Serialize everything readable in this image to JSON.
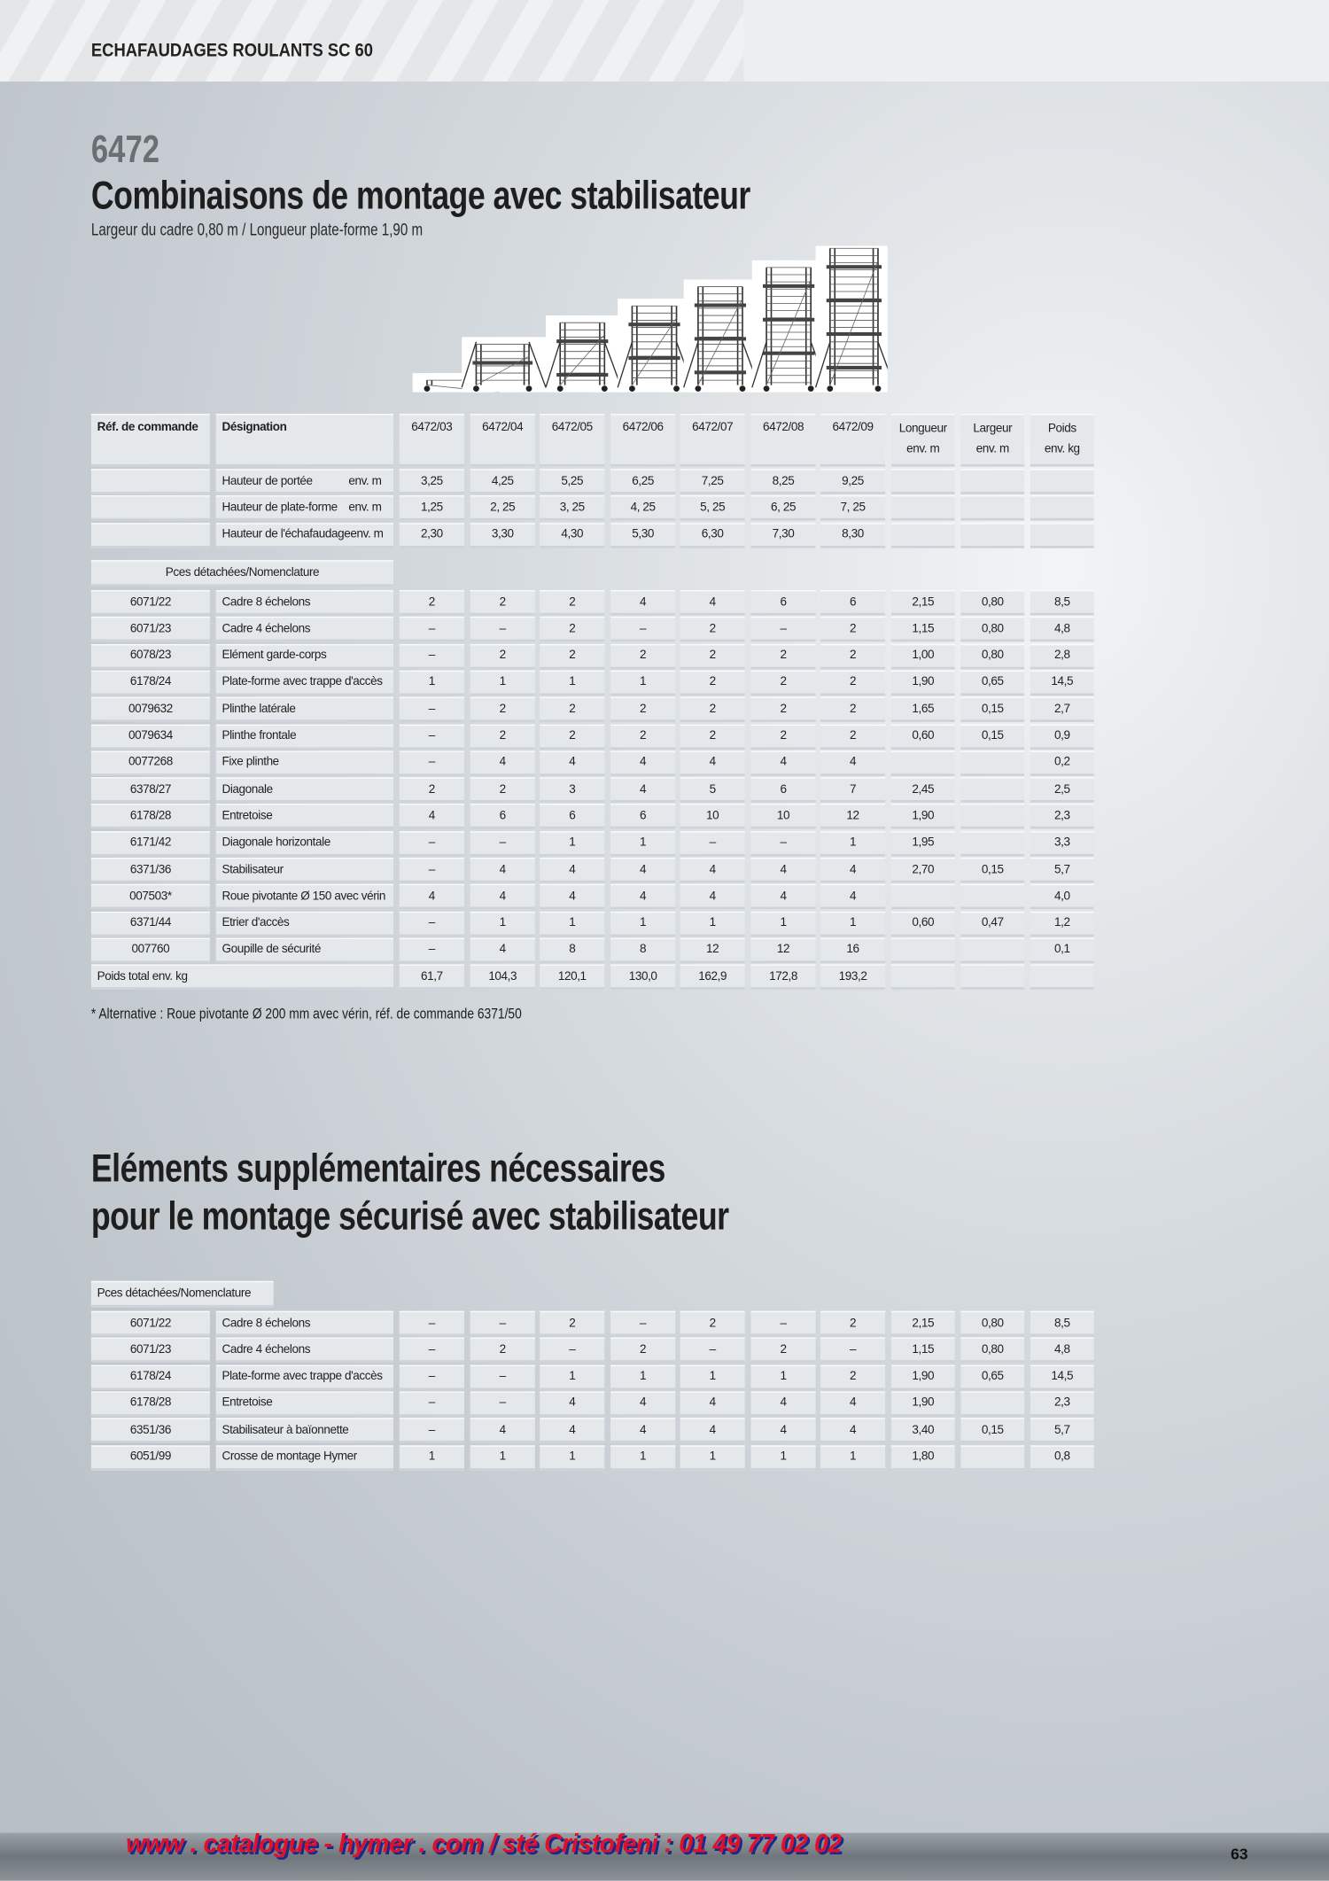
{
  "header": {
    "title": "ECHAFAUDAGES ROULANTS SC 60"
  },
  "section1": {
    "number": "6472",
    "title": "Combinaisons de montage avec stabilisateur",
    "subtitle": "Largeur du cadre 0,80 m / Longueur plate-forme 1,90 m",
    "table": {
      "columns": {
        "ref": "Réf. de commande",
        "designation": "Désignation",
        "models": [
          "6472/03",
          "6472/04",
          "6472/05",
          "6472/06",
          "6472/07",
          "6472/08",
          "6472/09"
        ],
        "extra": [
          [
            "Longueur",
            "env. m"
          ],
          [
            "Largeur",
            "env. m"
          ],
          [
            "Poids",
            "env. kg"
          ]
        ]
      },
      "heights": [
        {
          "label": "Hauteur de portée",
          "unit": "env. m",
          "values": [
            "3,25",
            "4,25",
            "5,25",
            "6,25",
            "7,25",
            "8,25",
            "9,25"
          ]
        },
        {
          "label": "Hauteur de plate-forme",
          "unit": "env. m",
          "values": [
            "1,25",
            "2, 25",
            "3, 25",
            "4, 25",
            "5, 25",
            "6, 25",
            "7, 25"
          ]
        },
        {
          "label": "Hauteur de l'échafaudage",
          "unit": "env. m",
          "values": [
            "2,30",
            "3,30",
            "4,30",
            "5,30",
            "6,30",
            "7,30",
            "8,30"
          ]
        }
      ],
      "parts_label": "Pces détachées/Nomenclature",
      "rows": [
        [
          "6071/22",
          "Cadre 8 échelons",
          "2",
          "2",
          "2",
          "4",
          "4",
          "6",
          "6",
          "2,15",
          "0,80",
          "8,5"
        ],
        [
          "6071/23",
          "Cadre 4 échelons",
          "–",
          "–",
          "2",
          "–",
          "2",
          "–",
          "2",
          "1,15",
          "0,80",
          "4,8"
        ],
        [
          "6078/23",
          "Elément garde-corps",
          "–",
          "2",
          "2",
          "2",
          "2",
          "2",
          "2",
          "1,00",
          "0,80",
          "2,8"
        ],
        [
          "6178/24",
          "Plate-forme avec trappe d'accès",
          "1",
          "1",
          "1",
          "1",
          "2",
          "2",
          "2",
          "1,90",
          "0,65",
          "14,5"
        ],
        [
          "0079632",
          "Plinthe latérale",
          "–",
          "2",
          "2",
          "2",
          "2",
          "2",
          "2",
          "1,65",
          "0,15",
          "2,7"
        ],
        [
          "0079634",
          "Plinthe frontale",
          "–",
          "2",
          "2",
          "2",
          "2",
          "2",
          "2",
          "0,60",
          "0,15",
          "0,9"
        ],
        [
          "0077268",
          "Fixe plinthe",
          "–",
          "4",
          "4",
          "4",
          "4",
          "4",
          "4",
          null,
          null,
          "0,2"
        ],
        [
          "6378/27",
          "Diagonale",
          "2",
          "2",
          "3",
          "4",
          "5",
          "6",
          "7",
          "2,45",
          null,
          "2,5"
        ],
        [
          "6178/28",
          "Entretoise",
          "4",
          "6",
          "6",
          "6",
          "10",
          "10",
          "12",
          "1,90",
          null,
          "2,3"
        ],
        [
          "6171/42",
          "Diagonale horizontale",
          "–",
          "–",
          "1",
          "1",
          "–",
          "–",
          "1",
          "1,95",
          null,
          "3,3"
        ],
        [
          "6371/36",
          "Stabilisateur",
          "–",
          "4",
          "4",
          "4",
          "4",
          "4",
          "4",
          "2,70",
          "0,15",
          "5,7"
        ],
        [
          "007503*",
          "Roue pivotante Ø 150 avec vérin",
          "4",
          "4",
          "4",
          "4",
          "4",
          "4",
          "4",
          null,
          null,
          "4,0"
        ],
        [
          "6371/44",
          "Etrier d'accès",
          "–",
          "1",
          "1",
          "1",
          "1",
          "1",
          "1",
          "0,60",
          "0,47",
          "1,2"
        ],
        [
          "007760",
          "Goupille de sécurité",
          "–",
          "4",
          "8",
          "8",
          "12",
          "12",
          "16",
          null,
          null,
          "0,1"
        ]
      ],
      "total": {
        "label": "Poids total env. kg",
        "values": [
          "61,7",
          "104,3",
          "120,1",
          "130,0",
          "162,9",
          "172,8",
          "193,2"
        ]
      }
    },
    "footnote": "* Alternative : Roue pivotante Ø 200 mm avec vérin, réf. de commande 6371/50"
  },
  "section2": {
    "title_lines": [
      "Eléments supplémentaires nécessaires",
      "pour le montage sécurisé avec stabilisateur"
    ],
    "parts_label": "Pces détachées/Nomenclature",
    "rows": [
      [
        "6071/22",
        "Cadre 8 échelons",
        "–",
        "–",
        "2",
        "–",
        "2",
        "–",
        "2",
        "2,15",
        "0,80",
        "8,5"
      ],
      [
        "6071/23",
        "Cadre 4 échelons",
        "–",
        "2",
        "–",
        "2",
        "–",
        "2",
        "–",
        "1,15",
        "0,80",
        "4,8"
      ],
      [
        "6178/24",
        "Plate-forme avec trappe d'accès",
        "–",
        "–",
        "1",
        "1",
        "1",
        "1",
        "2",
        "1,90",
        "0,65",
        "14,5"
      ],
      [
        "6178/28",
        "Entretoise",
        "–",
        "–",
        "4",
        "4",
        "4",
        "4",
        "4",
        "1,90",
        null,
        "2,3"
      ],
      [
        "6351/36",
        "Stabilisateur à baïonnette",
        "–",
        "4",
        "4",
        "4",
        "4",
        "4",
        "4",
        "3,40",
        "0,15",
        "5,7"
      ],
      [
        "6051/99",
        "Crosse de montage Hymer",
        "1",
        "1",
        "1",
        "1",
        "1",
        "1",
        "1",
        "1,80",
        null,
        "0,8"
      ]
    ]
  },
  "footer": {
    "text": "www . catalogue - hymer . com / sté Cristofeni : 01 49 77 02 02",
    "page": "63"
  }
}
